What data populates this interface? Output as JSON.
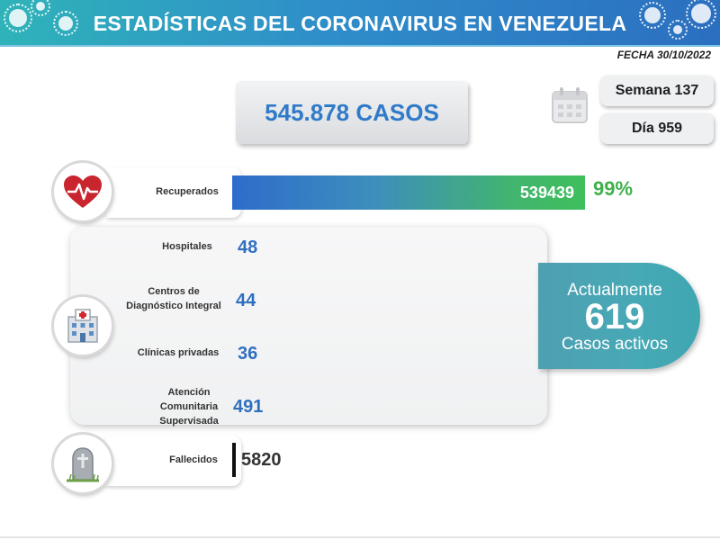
{
  "header": {
    "title": "ESTADÍSTICAS DEL CORONAVIRUS EN VENEZUELA"
  },
  "date": "FECHA 30/10/2022",
  "total": "545.878 CASOS",
  "week": "Semana 137",
  "day": "Día 959",
  "recovered": {
    "label": "Recuperados",
    "value": "539439",
    "percent": "99%"
  },
  "hospitals": {
    "label": "Hospitales",
    "value": "48"
  },
  "cdi": {
    "label_line1": "Centros de",
    "label_line2": "Diagnóstico Integral",
    "value": "44"
  },
  "private_clinics": {
    "label": "Clínicas privadas",
    "value": "36"
  },
  "community": {
    "label_line1": "Atención",
    "label_line2": "Comunitaria",
    "label_line3": "Supervisada",
    "value": "491"
  },
  "active": {
    "top": "Actualmente",
    "number": "619",
    "bottom": "Casos activos"
  },
  "deaths": {
    "label": "Fallecidos",
    "value": "5820"
  },
  "icons": [
    "virus-icon",
    "calendar-icon",
    "heart-icon",
    "hospital-icon",
    "tombstone-icon"
  ],
  "colors": {
    "header": "#2f8ec9",
    "blue_text": "#2f7ac9",
    "green": "#3fb04a",
    "active_panel": "#47a9b6"
  }
}
